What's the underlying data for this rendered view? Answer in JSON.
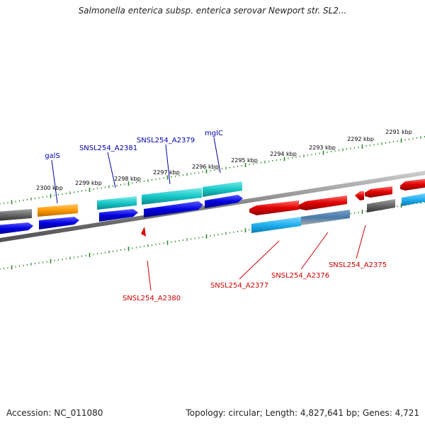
{
  "title": "Salmonella enterica subsp. enterica serovar Newport str. SL2...",
  "accession": "Accession: NC_011080",
  "topology": "Topology: circular; Length: 4,827,641 bp; Genes: 4,721",
  "ticks": [
    "2300 kbp",
    "2299 kbp",
    "2298 kbp",
    "2297 kbp",
    "2296 kbp",
    "2295 kbp",
    "2294 kbp",
    "2293 kbp",
    "2292 kbp",
    "2291 kbp"
  ],
  "upper_gene_labels": [
    "galS",
    "SNSL254_A2381",
    "SNSL254_A2379",
    "mglC"
  ],
  "lower_gene_labels": [
    "SNSL254_A2380",
    "SNSL254_A2377",
    "SNSL254_A2376",
    "SNSL254_A2375"
  ],
  "colors": {
    "forward_strand": "#0000e0",
    "reverse_strand": "#e00000",
    "cyan_gene": "#18c8c8",
    "sky_gene": "#20b0f0",
    "orange_gene": "#ff9900",
    "grey_gene": "#666666",
    "tick_green": "#2a8a2a",
    "backbone": "#808080",
    "upper_label": "#0000aa",
    "lower_label": "#cc0000"
  }
}
